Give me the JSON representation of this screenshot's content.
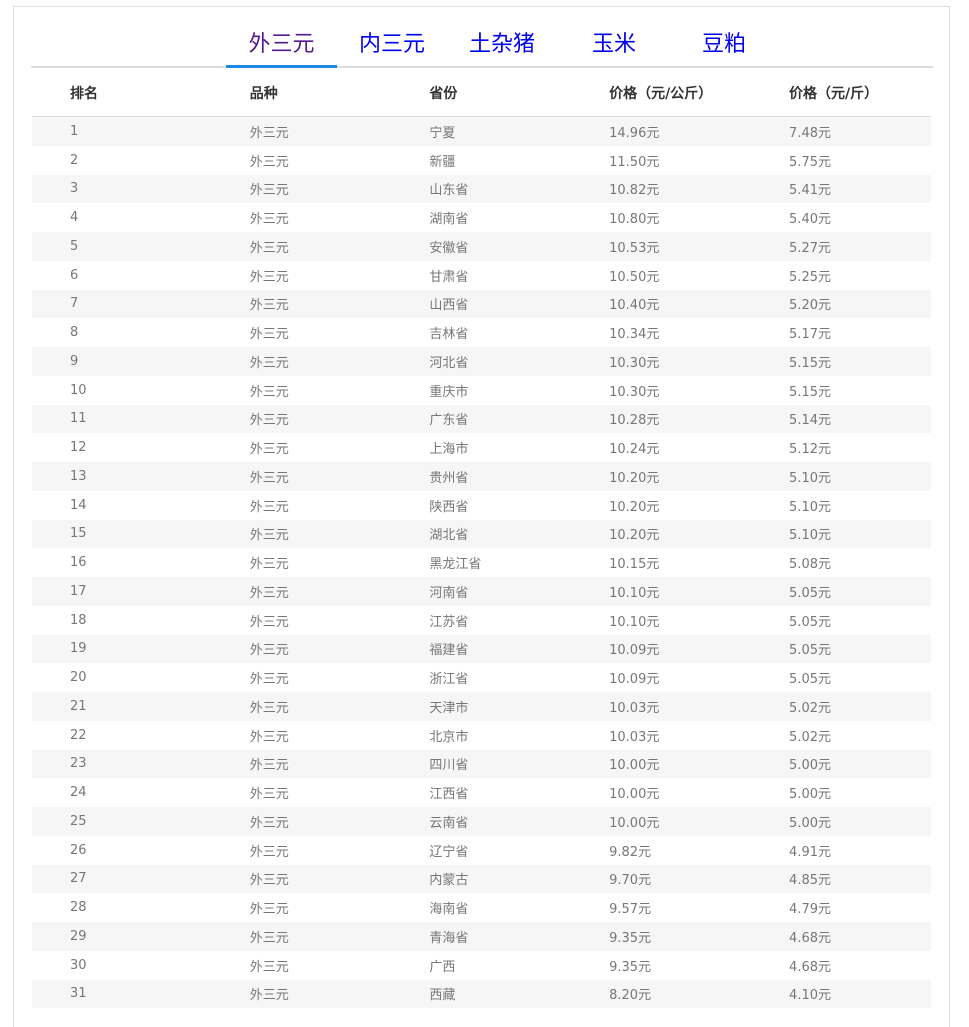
{
  "tabs": [
    {
      "label": "外三元",
      "active": true
    },
    {
      "label": "内三元"
    },
    {
      "label": "土杂猪"
    },
    {
      "label": "玉米"
    },
    {
      "label": "豆粕"
    }
  ],
  "colors": {
    "active_tab": "#551a8b",
    "tab": "#0000ee",
    "underline": "#1e88e5"
  },
  "table": {
    "headers": [
      "排名",
      "品种",
      "省份",
      "价格（元/公斤）",
      "价格（元/斤）"
    ],
    "rows": [
      [
        "1",
        "外三元",
        "宁夏",
        "14.96元",
        "7.48元"
      ],
      [
        "2",
        "外三元",
        "新疆",
        "11.50元",
        "5.75元"
      ],
      [
        "3",
        "外三元",
        "山东省",
        "10.82元",
        "5.41元"
      ],
      [
        "4",
        "外三元",
        "湖南省",
        "10.80元",
        "5.40元"
      ],
      [
        "5",
        "外三元",
        "安徽省",
        "10.53元",
        "5.27元"
      ],
      [
        "6",
        "外三元",
        "甘肃省",
        "10.50元",
        "5.25元"
      ],
      [
        "7",
        "外三元",
        "山西省",
        "10.40元",
        "5.20元"
      ],
      [
        "8",
        "外三元",
        "吉林省",
        "10.34元",
        "5.17元"
      ],
      [
        "9",
        "外三元",
        "河北省",
        "10.30元",
        "5.15元"
      ],
      [
        "10",
        "外三元",
        "重庆市",
        "10.30元",
        "5.15元"
      ],
      [
        "11",
        "外三元",
        "广东省",
        "10.28元",
        "5.14元"
      ],
      [
        "12",
        "外三元",
        "上海市",
        "10.24元",
        "5.12元"
      ],
      [
        "13",
        "外三元",
        "贵州省",
        "10.20元",
        "5.10元"
      ],
      [
        "14",
        "外三元",
        "陕西省",
        "10.20元",
        "5.10元"
      ],
      [
        "15",
        "外三元",
        "湖北省",
        "10.20元",
        "5.10元"
      ],
      [
        "16",
        "外三元",
        "黑龙江省",
        "10.15元",
        "5.08元"
      ],
      [
        "17",
        "外三元",
        "河南省",
        "10.10元",
        "5.05元"
      ],
      [
        "18",
        "外三元",
        "江苏省",
        "10.10元",
        "5.05元"
      ],
      [
        "19",
        "外三元",
        "福建省",
        "10.09元",
        "5.05元"
      ],
      [
        "20",
        "外三元",
        "浙江省",
        "10.09元",
        "5.05元"
      ],
      [
        "21",
        "外三元",
        "天津市",
        "10.03元",
        "5.02元"
      ],
      [
        "22",
        "外三元",
        "北京市",
        "10.03元",
        "5.02元"
      ],
      [
        "23",
        "外三元",
        "四川省",
        "10.00元",
        "5.00元"
      ],
      [
        "24",
        "外三元",
        "江西省",
        "10.00元",
        "5.00元"
      ],
      [
        "25",
        "外三元",
        "云南省",
        "10.00元",
        "5.00元"
      ],
      [
        "26",
        "外三元",
        "辽宁省",
        "9.82元",
        "4.91元"
      ],
      [
        "27",
        "外三元",
        "内蒙古",
        "9.70元",
        "4.85元"
      ],
      [
        "28",
        "外三元",
        "海南省",
        "9.57元",
        "4.79元"
      ],
      [
        "29",
        "外三元",
        "青海省",
        "9.35元",
        "4.68元"
      ],
      [
        "30",
        "外三元",
        "广西",
        "9.35元",
        "4.68元"
      ],
      [
        "31",
        "外三元",
        "西藏",
        "8.20元",
        "4.10元"
      ]
    ]
  }
}
